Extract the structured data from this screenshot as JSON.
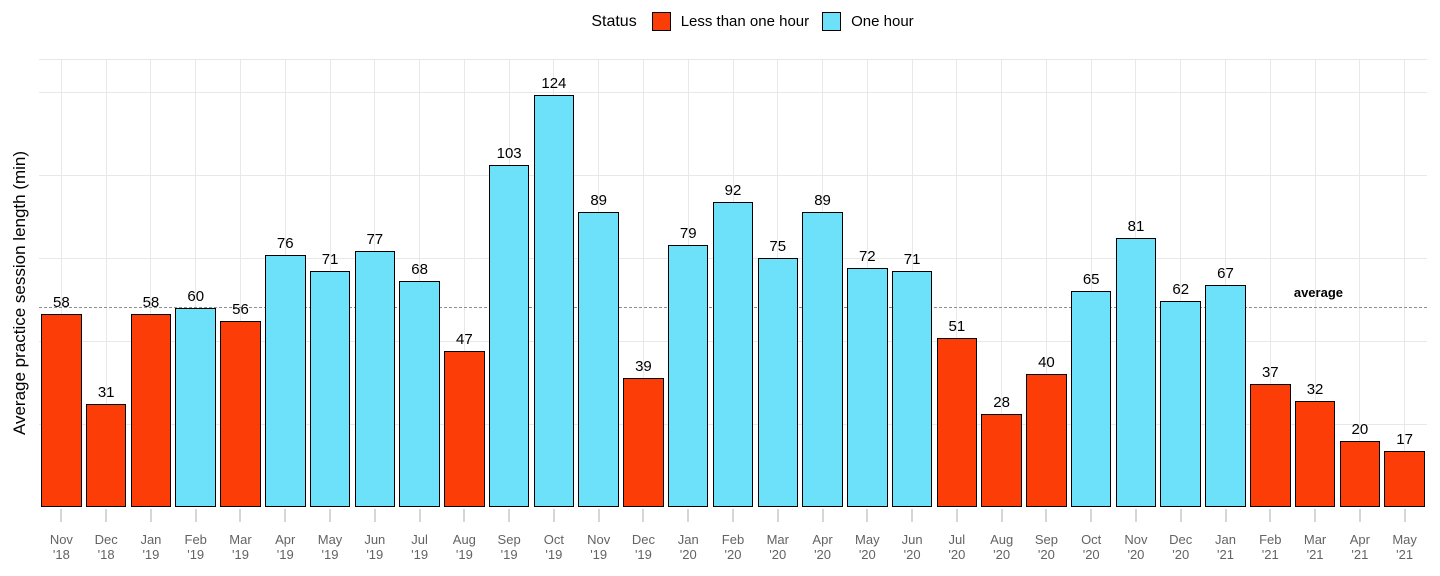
{
  "legend": {
    "title": "Status",
    "items": [
      {
        "label": "Less than one hour",
        "color": "#FC3D08"
      },
      {
        "label": "One hour",
        "color": "#6EE1FA"
      }
    ]
  },
  "y_axis": {
    "label": "Average practice session length (min)"
  },
  "average_annotation": {
    "label": "average"
  },
  "chart_data": {
    "type": "bar",
    "title": "",
    "xlabel": "",
    "ylabel": "Average practice session length (min)",
    "ylim": [
      0,
      135
    ],
    "y_gridlines": [
      25,
      50,
      75,
      100,
      125
    ],
    "grid": "on",
    "legend_position": "top-center",
    "legend_title": "Status",
    "series_colors": {
      "Less than one hour": "#FC3D08",
      "One hour": "#6EE1FA"
    },
    "average_line": 60,
    "bars": [
      {
        "month": "Nov",
        "year": "'18",
        "value": 58,
        "status": "Less than one hour"
      },
      {
        "month": "Dec",
        "year": "'18",
        "value": 31,
        "status": "Less than one hour"
      },
      {
        "month": "Jan",
        "year": "'19",
        "value": 58,
        "status": "Less than one hour"
      },
      {
        "month": "Feb",
        "year": "'19",
        "value": 60,
        "status": "One hour"
      },
      {
        "month": "Mar",
        "year": "'19",
        "value": 56,
        "status": "Less than one hour"
      },
      {
        "month": "Apr",
        "year": "'19",
        "value": 76,
        "status": "One hour"
      },
      {
        "month": "May",
        "year": "'19",
        "value": 71,
        "status": "One hour"
      },
      {
        "month": "Jun",
        "year": "'19",
        "value": 77,
        "status": "One hour"
      },
      {
        "month": "Jul",
        "year": "'19",
        "value": 68,
        "status": "One hour"
      },
      {
        "month": "Aug",
        "year": "'19",
        "value": 47,
        "status": "Less than one hour"
      },
      {
        "month": "Sep",
        "year": "'19",
        "value": 103,
        "status": "One hour"
      },
      {
        "month": "Oct",
        "year": "'19",
        "value": 124,
        "status": "One hour"
      },
      {
        "month": "Nov",
        "year": "'19",
        "value": 89,
        "status": "One hour"
      },
      {
        "month": "Dec",
        "year": "'19",
        "value": 39,
        "status": "Less than one hour"
      },
      {
        "month": "Jan",
        "year": "'20",
        "value": 79,
        "status": "One hour"
      },
      {
        "month": "Feb",
        "year": "'20",
        "value": 92,
        "status": "One hour"
      },
      {
        "month": "Mar",
        "year": "'20",
        "value": 75,
        "status": "One hour"
      },
      {
        "month": "Apr",
        "year": "'20",
        "value": 89,
        "status": "One hour"
      },
      {
        "month": "May",
        "year": "'20",
        "value": 72,
        "status": "One hour"
      },
      {
        "month": "Jun",
        "year": "'20",
        "value": 71,
        "status": "One hour"
      },
      {
        "month": "Jul",
        "year": "'20",
        "value": 51,
        "status": "Less than one hour"
      },
      {
        "month": "Aug",
        "year": "'20",
        "value": 28,
        "status": "Less than one hour"
      },
      {
        "month": "Sep",
        "year": "'20",
        "value": 40,
        "status": "Less than one hour"
      },
      {
        "month": "Oct",
        "year": "'20",
        "value": 65,
        "status": "One hour"
      },
      {
        "month": "Nov",
        "year": "'20",
        "value": 81,
        "status": "One hour"
      },
      {
        "month": "Dec",
        "year": "'20",
        "value": 62,
        "status": "One hour"
      },
      {
        "month": "Jan",
        "year": "'21",
        "value": 67,
        "status": "One hour"
      },
      {
        "month": "Feb",
        "year": "'21",
        "value": 37,
        "status": "Less than one hour"
      },
      {
        "month": "Mar",
        "year": "'21",
        "value": 32,
        "status": "Less than one hour"
      },
      {
        "month": "Apr",
        "year": "'21",
        "value": 20,
        "status": "Less than one hour"
      },
      {
        "month": "May",
        "year": "'21",
        "value": 17,
        "status": "Less than one hour"
      }
    ]
  }
}
